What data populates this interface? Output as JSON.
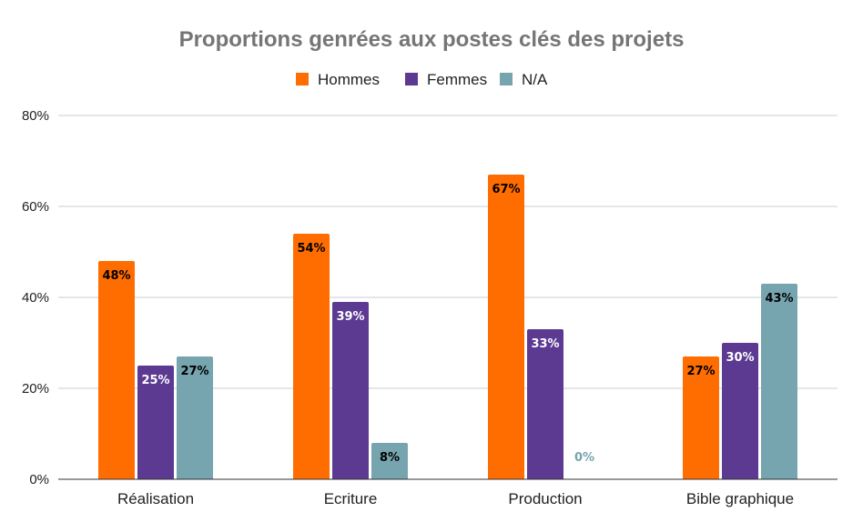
{
  "chart_data": {
    "type": "bar",
    "title": "Proportions genrées aux postes clés des projets",
    "xlabel": "",
    "ylabel": "",
    "categories": [
      "Réalisation",
      "Ecriture",
      "Production",
      "Bible graphique"
    ],
    "series": [
      {
        "name": "Hommes",
        "color": "#ff6d01",
        "values": [
          48,
          54,
          67,
          27
        ],
        "labels": [
          "48%",
          "54%",
          "67%",
          "27%"
        ],
        "label_color": "#000000"
      },
      {
        "name": "Femmes",
        "color": "#5c3a92",
        "values": [
          25,
          39,
          33,
          30
        ],
        "labels": [
          "25%",
          "39%",
          "33%",
          "30%"
        ],
        "label_color": "#ffffff"
      },
      {
        "name": "N/A",
        "color": "#76a5af",
        "values": [
          27,
          8,
          0,
          43
        ],
        "labels": [
          "27%",
          "8%",
          "0%",
          "43%"
        ],
        "label_color": "#000000",
        "zero_label_color": "#76a5af"
      }
    ],
    "ylim": [
      0,
      80
    ],
    "yticks": [
      0,
      20,
      40,
      60,
      80
    ],
    "ytick_labels": [
      "0%",
      "20%",
      "40%",
      "60%",
      "80%"
    ],
    "grid": true,
    "legend_position": "top-center"
  }
}
